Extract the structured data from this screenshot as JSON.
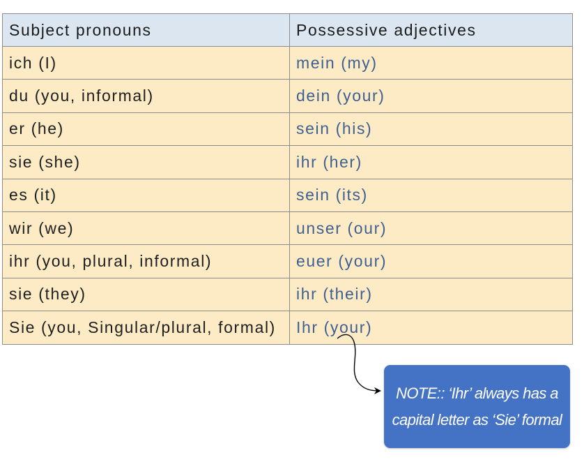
{
  "table": {
    "headers": {
      "subject": "Subject pronouns",
      "possessive": "Possessive adjectives"
    },
    "rows": [
      {
        "subject": "ich (I)",
        "possessive": "mein (my)"
      },
      {
        "subject": "du (you, informal)",
        "possessive": "dein (your)"
      },
      {
        "subject": "er (he)",
        "possessive": "sein (his)"
      },
      {
        "subject": "sie (she)",
        "possessive": "ihr (her)"
      },
      {
        "subject": "es (it)",
        "possessive": "sein (its)"
      },
      {
        "subject": "wir (we)",
        "possessive": "unser (our)"
      },
      {
        "subject": "ihr (you, plural, informal)",
        "possessive": "euer (your)"
      },
      {
        "subject": "sie (they)",
        "possessive": "ihr (their)"
      },
      {
        "subject": "Sie (you, Singular/plural, formal)",
        "possessive": "Ihr (your)"
      }
    ]
  },
  "note": {
    "line1": "NOTE:: ‘Ihr’ always has a",
    "line2": "capital letter as ‘Sie’ formal"
  },
  "colors": {
    "header_bg": "#dbe6f1",
    "row_bg": "#fdebc6",
    "possessive_text": "#3f5f90",
    "note_bg": "#4472c4"
  }
}
